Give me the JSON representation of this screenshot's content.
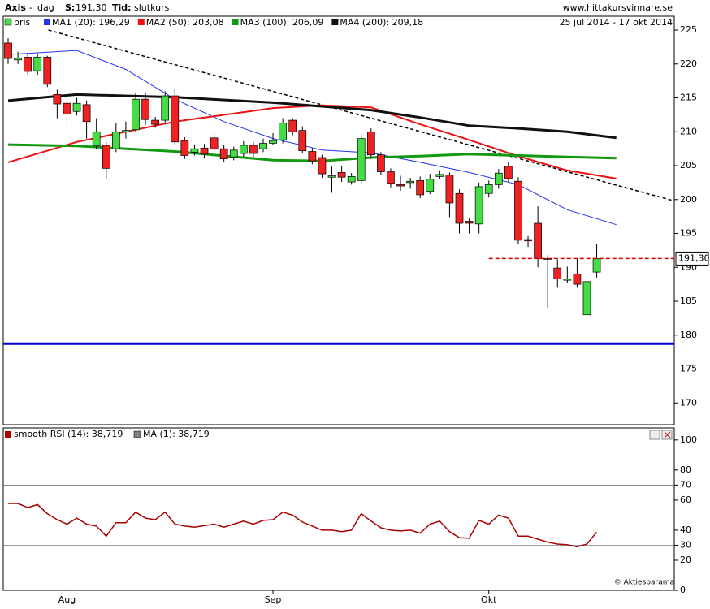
{
  "header": {
    "ticker": "Axis",
    "separator": "-",
    "period": "dag",
    "price_label": "S:",
    "price": "191,30",
    "time_label": "Tid:",
    "time": "slutkurs",
    "site": "www.hittakursvinnare.se",
    "date_range": "25 jul 2014 - 17 okt 2014"
  },
  "chart_data": [
    {
      "type": "candlestick",
      "legend_label": "pris",
      "up_color": "#44dd44",
      "down_color": "#ee2222",
      "categories": [
        null,
        null,
        null,
        null,
        null,
        null,
        "Aug",
        null,
        null,
        null,
        null,
        null,
        null,
        null,
        null,
        null,
        null,
        null,
        null,
        null,
        null,
        null,
        null,
        null,
        null,
        null,
        null,
        "Sep",
        null,
        null,
        null,
        null,
        null,
        null,
        null,
        null,
        null,
        null,
        null,
        null,
        null,
        null,
        null,
        null,
        null,
        null,
        null,
        null,
        null,
        "Okt",
        null,
        null,
        null,
        null,
        null,
        null,
        null,
        null,
        null,
        null,
        null
      ],
      "open": [
        223.1,
        220.6,
        221,
        219,
        221,
        215.5,
        214.2,
        213,
        214,
        207.9,
        208,
        207.5,
        210,
        210.3,
        214.8,
        211.7,
        211.7,
        215.3,
        208.7,
        207,
        207.6,
        209.1,
        207.5,
        206.3,
        206.8,
        208,
        207.5,
        208.3,
        208.8,
        211.7,
        210.2,
        207.1,
        206.2,
        203.3,
        204,
        202.6,
        202.8,
        210,
        206.6,
        204.1,
        202.2,
        202.5,
        202.8,
        201.2,
        203.4,
        203.6,
        200.9,
        196.8,
        196.4,
        200.9,
        202.2,
        204.9,
        202.7,
        194.1,
        196.5,
        191.3,
        189.9,
        188.1,
        189,
        183,
        189.3
      ],
      "close": [
        220.8,
        220.9,
        218.9,
        221,
        217,
        214.1,
        212.6,
        214.2,
        211.5,
        210,
        204.6,
        210,
        210.2,
        214.8,
        211.8,
        211.1,
        215.3,
        208.5,
        206.5,
        207.5,
        206.7,
        207.5,
        206,
        207.3,
        208,
        206.8,
        208.3,
        208.7,
        211.3,
        210,
        207.2,
        205.7,
        203.8,
        203.5,
        203.3,
        203.4,
        209,
        206.6,
        204.1,
        202.4,
        202,
        202.7,
        200.7,
        203,
        203.7,
        199.5,
        196.5,
        196.5,
        201.9,
        202.2,
        203.9,
        203.1,
        194,
        193.9,
        191.3,
        191.2,
        188.3,
        188.3,
        187.5,
        187.9,
        191.3
      ],
      "high": [
        223.8,
        221.8,
        221.5,
        221.5,
        221.2,
        216.2,
        214.8,
        215,
        214.6,
        212,
        208.5,
        211.3,
        211.5,
        215.8,
        215.8,
        212.2,
        216,
        216.4,
        209.2,
        208,
        208.2,
        209.8,
        208,
        207.8,
        208.6,
        208.5,
        209,
        209.8,
        212,
        212,
        210.8,
        207.6,
        206.6,
        205,
        205,
        203.9,
        209.6,
        210.5,
        207,
        204.6,
        203.5,
        203.2,
        203.4,
        203.8,
        204.3,
        204,
        201.5,
        197.3,
        202.5,
        202.8,
        204.5,
        205.6,
        203.3,
        194.6,
        199,
        191.8,
        191.2,
        190.1,
        191.3,
        188,
        193.4
      ],
      "low": [
        220,
        220,
        218.5,
        218.4,
        216.6,
        212,
        211,
        212.4,
        209,
        207.4,
        203.1,
        207,
        209,
        210,
        211,
        210.6,
        211.2,
        208,
        206,
        206.5,
        206.2,
        207,
        205.6,
        205.8,
        206.3,
        206.2,
        207,
        208,
        208.3,
        209.5,
        206.8,
        205.2,
        203.2,
        201,
        202.6,
        202.2,
        202.3,
        206,
        203.6,
        201.8,
        201.3,
        201.6,
        200.2,
        200.8,
        203,
        197.4,
        195,
        195,
        195,
        200.3,
        201.6,
        202.6,
        193.5,
        193,
        190,
        184,
        187,
        187.7,
        187,
        178.9,
        188.5
      ],
      "ylim": [
        166.8,
        226.8
      ],
      "yticks": [
        170,
        175,
        180,
        185,
        190,
        195,
        200,
        205,
        210,
        215,
        220,
        225
      ],
      "series": [
        {
          "name": "MA1 (20): 196,29",
          "color": "#2233ee",
          "width": 1,
          "x": [
            0,
            7,
            12,
            17,
            22,
            27,
            32,
            37,
            42,
            47,
            52,
            57,
            62
          ],
          "values": [
            221.4,
            222,
            219.2,
            214.8,
            211.5,
            209,
            207.3,
            206.9,
            205.5,
            204,
            202.2,
            198.5,
            196.3
          ]
        },
        {
          "name": "MA2 (50): 203,08",
          "color": "#ee1111",
          "width": 2,
          "x": [
            0,
            7,
            17,
            27,
            32,
            37,
            42,
            47,
            52,
            57,
            62
          ],
          "values": [
            205.5,
            208.5,
            211.5,
            213.5,
            213.9,
            213.6,
            211.1,
            208.8,
            206.4,
            204.3,
            203.1
          ]
        },
        {
          "name": "MA3 (100): 206,09",
          "color": "#119911",
          "width": 3,
          "x": [
            0,
            7,
            17,
            27,
            32,
            37,
            42,
            47,
            52,
            57,
            62
          ],
          "values": [
            208.1,
            207.9,
            207.1,
            205.8,
            205.7,
            206.2,
            206.4,
            206.7,
            206.5,
            206.3,
            206.1
          ]
        },
        {
          "name": "MA4 (200): 209,18",
          "color": "#111111",
          "width": 3,
          "x": [
            0,
            7,
            17,
            27,
            37,
            42,
            47,
            52,
            57,
            62
          ],
          "values": [
            214.6,
            215.5,
            215.1,
            214.3,
            213.2,
            212.1,
            210.9,
            210.5,
            210,
            209.1
          ]
        }
      ],
      "trend_line": {
        "x": [
          4.1,
          67.9
        ],
        "values": [
          225,
          199.8
        ]
      },
      "support_line": 178.75,
      "last_price": {
        "x_start": 49,
        "value": 191.3
      },
      "last_price_label": "191,30"
    },
    {
      "type": "line",
      "ylim": [
        0,
        108
      ],
      "yticks": [
        0,
        20,
        30,
        40,
        60,
        70,
        80,
        100
      ],
      "hlines": [
        30,
        70
      ],
      "series": [
        {
          "name": "smooth RSI (14): 38,719",
          "color": "#aa0000",
          "values": [
            57.8,
            57.8,
            55,
            57,
            51,
            47,
            44,
            48,
            44,
            42.7,
            36,
            45,
            45,
            52,
            48,
            47,
            52,
            44,
            42.7,
            42,
            43,
            44,
            42,
            44,
            46,
            44,
            46.5,
            47,
            52,
            50,
            45.4,
            42.7,
            40,
            40,
            39,
            40,
            51,
            46,
            41.6,
            40,
            39.5,
            40,
            38,
            44,
            46,
            39,
            35,
            34.6,
            46.5,
            44,
            50,
            48,
            36,
            36,
            34,
            32,
            30.8,
            30.3,
            29,
            30.8,
            38.7
          ]
        }
      ],
      "legend_extra": [
        {
          "name": "MA (1): 38,719",
          "color": "#808080"
        }
      ],
      "credit": "© Aktiesparama"
    }
  ]
}
